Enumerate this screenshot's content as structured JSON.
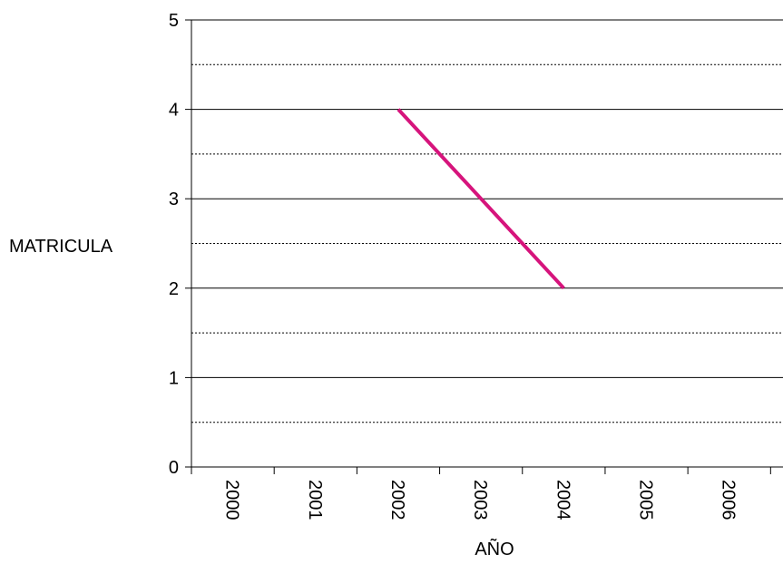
{
  "chart_data": {
    "type": "line",
    "title": "",
    "xlabel": "AÑO",
    "ylabel": "MATRICULA",
    "categories": [
      "2000",
      "2001",
      "2002",
      "2003",
      "2004",
      "2005",
      "2006"
    ],
    "series": [
      {
        "values": [
          null,
          null,
          4,
          3,
          2,
          null,
          null
        ],
        "color": "#d6147c"
      }
    ],
    "ylim": [
      0,
      5
    ],
    "yticks": [
      0,
      1,
      2,
      3,
      4,
      5
    ],
    "grid": {
      "major": "solid",
      "minor": "dotted",
      "minor_step": 0.5
    },
    "legend": "none"
  }
}
